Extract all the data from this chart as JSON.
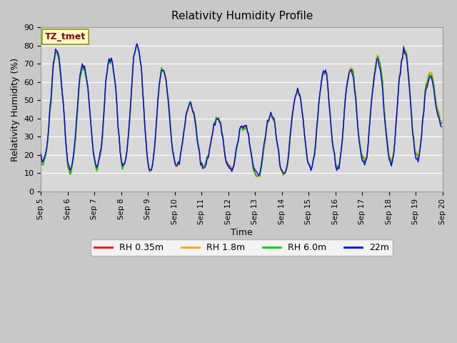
{
  "title": "Relativity Humidity Profile",
  "xlabel": "Time",
  "ylabel": "Relativity Humidity (%)",
  "ylim": [
    0,
    90
  ],
  "yticks": [
    0,
    10,
    20,
    30,
    40,
    50,
    60,
    70,
    80,
    90
  ],
  "annotation_text": "TZ_tmet",
  "annotation_color": "#8B0000",
  "annotation_bg": "#FFFFCC",
  "annotation_border": "#999900",
  "series_colors": [
    "#FF0000",
    "#FFA500",
    "#00CC00",
    "#0000FF"
  ],
  "series_labels": [
    "RH 0.35m",
    "RH 1.8m",
    "RH 6.0m",
    "22m"
  ],
  "fig_bg": "#C8C8C8",
  "plot_bg": "#D8D8D8",
  "line_width": 1.0,
  "grid_color": "#BBBBBB",
  "xticklabels": [
    "Sep 5",
    "Sep 6",
    "Sep 7",
    "Sep 8",
    "Sep 9",
    "Sep 10",
    "Sep 11",
    "Sep 12",
    "Sep 13",
    "Sep 14",
    "Sep 15",
    "Sep 16",
    "Sep 17",
    "Sep 18",
    "Sep 19",
    "Sep 20"
  ]
}
